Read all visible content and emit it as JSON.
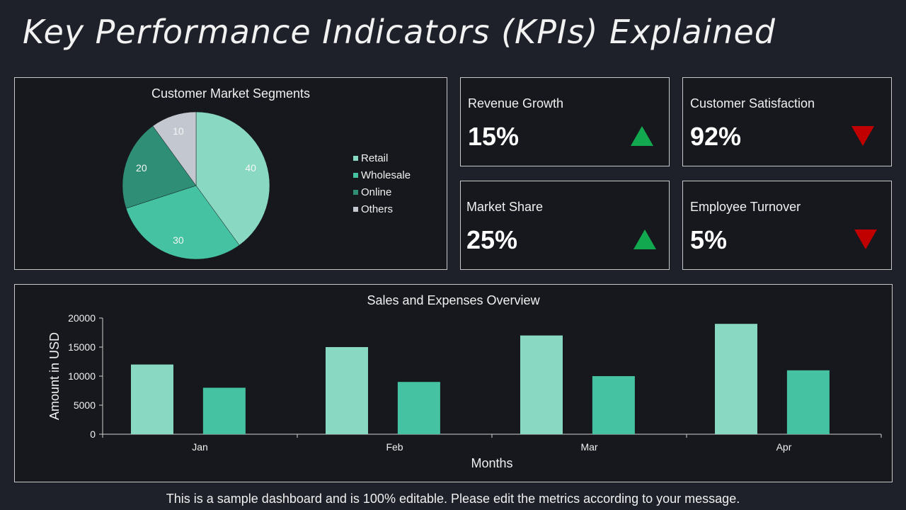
{
  "page": {
    "title": "Key Performance Indicators (KPIs) Explained",
    "footer": "This is a sample dashboard and is 100% editable. Please edit the metrics according to your message."
  },
  "colors": {
    "retail": "#89d9c2",
    "wholesale": "#44c2a1",
    "online": "#2f8f76",
    "others": "#c3c7d0",
    "up": "#12a84f",
    "down": "#c00000"
  },
  "kpis": [
    {
      "label": "Revenue Growth",
      "value": "15%",
      "trend": "up"
    },
    {
      "label": "Customer Satisfaction",
      "value": "92%",
      "trend": "down"
    },
    {
      "label": "Market Share",
      "value": "25%",
      "trend": "up"
    },
    {
      "label": "Employee Turnover",
      "value": "5%",
      "trend": "down"
    }
  ],
  "chart_data": [
    {
      "type": "pie",
      "title": "Customer Market Segments",
      "labels": [
        "Retail",
        "Wholesale",
        "Online",
        "Others"
      ],
      "values": [
        40,
        30,
        20,
        10
      ],
      "legend": "right"
    },
    {
      "type": "bar",
      "title": "Sales and Expenses Overview",
      "categories": [
        "Jan",
        "Feb",
        "Mar",
        "Apr"
      ],
      "series": [
        {
          "values": [
            12000,
            15000,
            17000,
            19000
          ]
        },
        {
          "values": [
            8000,
            9000,
            10000,
            11000
          ]
        }
      ],
      "xlabel": "Months",
      "ylabel": "Amount in USD",
      "ylim": [
        0,
        20000
      ],
      "yticks": [
        0,
        5000,
        10000,
        15000,
        20000
      ],
      "grid": false
    }
  ]
}
